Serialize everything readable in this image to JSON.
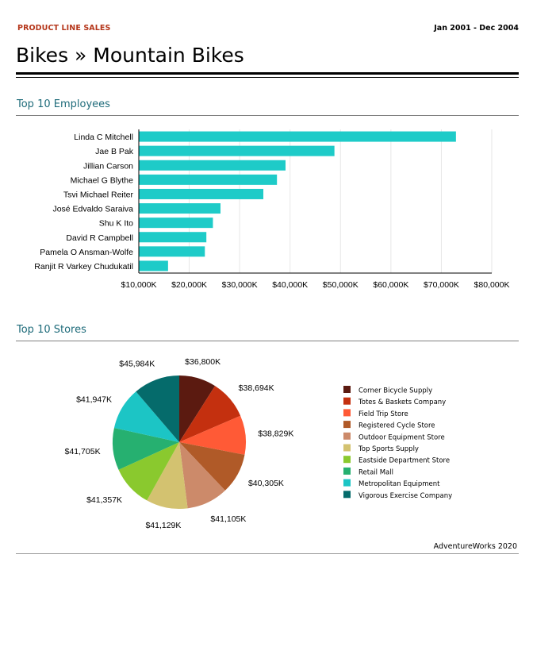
{
  "header": {
    "kicker": "PRODUCT LINE SALES",
    "date_range": "Jan 2001 - Dec 2004",
    "title": "Bikes » Mountain Bikes"
  },
  "footer": {
    "text": "AdventureWorks 2020"
  },
  "chart_data": [
    {
      "type": "bar",
      "orientation": "horizontal",
      "title": "Top 10 Employees",
      "categories": [
        "Linda C Mitchell",
        "Jae B Pak",
        "Jillian  Carson",
        "Michael G Blythe",
        "Tsvi Michael Reiter",
        "José Edvaldo Saraiva",
        "Shu K Ito",
        "David R Campbell",
        "Pamela O Ansman-Wolfe",
        "Ranjit R Varkey Chudukatil"
      ],
      "values": [
        72900,
        48800,
        39100,
        37400,
        34700,
        26200,
        24700,
        23400,
        23100,
        15800
      ],
      "xlim": [
        10000,
        80000
      ],
      "tick_values": [
        10000,
        20000,
        30000,
        40000,
        50000,
        60000,
        70000,
        80000
      ],
      "tick_labels": [
        "$10,000K",
        "$20,000K",
        "$30,000K",
        "$40,000K",
        "$50,000K",
        "$60,000K",
        "$70,000K",
        "$80,000K"
      ],
      "grid": true,
      "color": "#1ecbc8"
    },
    {
      "type": "pie",
      "title": "Top 10 Stores",
      "legend_position": "right",
      "labels": [
        "Corner Bicycle Supply",
        "Totes & Baskets Company",
        "Field Trip Store",
        "Registered Cycle Store",
        "Outdoor Equipment Store",
        "Top Sports Supply",
        "Eastside Department Store",
        "Retail Mall",
        "Metropolitan Equipment",
        "Vigorous Exercise Company"
      ],
      "values": [
        36800,
        38694,
        38829,
        40305,
        41105,
        41129,
        41357,
        41705,
        41947,
        45984
      ],
      "value_labels": [
        "$36,800K",
        "$38,694K",
        "$38,829K",
        "$40,305K",
        "$41,105K",
        "$41,129K",
        "$41,357K",
        "$41,705K",
        "$41,947K",
        "$45,984K"
      ],
      "colors": [
        "#5b1a10",
        "#c4300f",
        "#ff5a36",
        "#b05a28",
        "#cc8a6a",
        "#d3c270",
        "#8ac92e",
        "#26b070",
        "#1cc5c5",
        "#056b6b"
      ]
    }
  ]
}
